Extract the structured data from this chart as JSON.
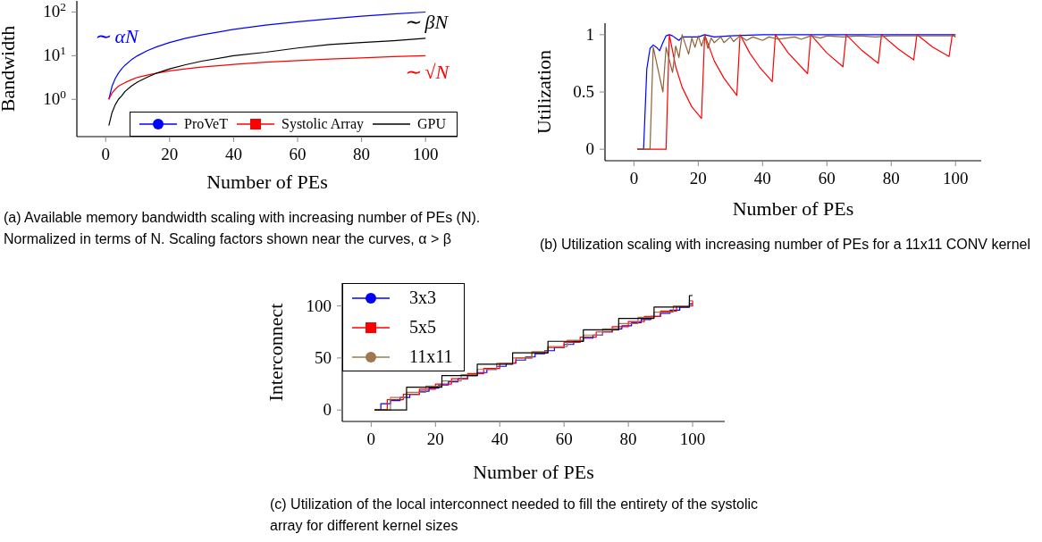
{
  "chart_data": [
    {
      "type": "line",
      "xlabel": "Number of PEs",
      "ylabel": "Bandwidth",
      "log": "y",
      "legend": "bottom right",
      "x": [
        1,
        2,
        3,
        4,
        5,
        6,
        8,
        10,
        13,
        16,
        20,
        25,
        30,
        40,
        50,
        60,
        70,
        80,
        90,
        100
      ],
      "series": [
        {
          "name": "ProVeT",
          "color": "#0000ff",
          "values": [
            1,
            2,
            3,
            4,
            5,
            6,
            8,
            10,
            13,
            16,
            20,
            25,
            30,
            40,
            50,
            60,
            70,
            80,
            90,
            100
          ]
        },
        {
          "name": "Systolic Array",
          "color": "#ff0000",
          "values": [
            1,
            1.4,
            1.7,
            2,
            2.2,
            2.4,
            2.8,
            3.2,
            3.6,
            4,
            4.5,
            5,
            5.5,
            6.3,
            7.1,
            7.7,
            8.4,
            8.9,
            9.5,
            10
          ]
        },
        {
          "name": "GPU",
          "color": "#000000",
          "values": [
            0.25,
            0.5,
            0.75,
            1,
            1.2,
            1.5,
            2,
            2.5,
            3.2,
            4,
            5,
            6.2,
            7.5,
            10,
            12,
            15,
            18,
            20,
            22,
            25
          ]
        }
      ],
      "xlim": [
        -9,
        110
      ],
      "xticks": [
        0,
        20,
        40,
        60,
        80,
        100
      ],
      "ylim": [
        0.14,
        180
      ],
      "yticks": [
        {
          "value": 1,
          "label": "10$^{0}$"
        },
        {
          "value": 10,
          "label": "10$^{1}$"
        },
        {
          "value": 100,
          "label": "10$^{2}$"
        }
      ],
      "annotations": [
        "∼ αN",
        "∼ √N",
        "∼ βN",
        "(a) Available memory bandwidth scaling with increasing number of PEs (N). Normalized in terms of N. Scaling factors shown near the curves, α > β"
      ]
    },
    {
      "type": "line",
      "xlabel": "Number of PEs",
      "ylabel": "Utilization",
      "series": [
        {
          "color": "#0000ff",
          "x": [
            1,
            3,
            4,
            5,
            6,
            7,
            8,
            9,
            10,
            11,
            12,
            13,
            14,
            15,
            20,
            22,
            25,
            30,
            40,
            100
          ],
          "values": [
            0,
            0,
            0.7,
            0.88,
            0.91,
            0.89,
            0.86,
            0.93,
            0.99,
            1,
            0.99,
            0.97,
            0.95,
            0.98,
            0.98,
            1,
            0.98,
            0.99,
            1,
            1
          ]
        },
        {
          "color": "#ff0000",
          "x": [
            1,
            10,
            11,
            13,
            15,
            18,
            21,
            22,
            25,
            28,
            32,
            33,
            36,
            39,
            43,
            44,
            48,
            54,
            55,
            60,
            65,
            66,
            71,
            76,
            77,
            82,
            87,
            88,
            93,
            98,
            99,
            100
          ],
          "values": [
            0,
            0,
            1,
            0.72,
            0.54,
            0.37,
            0.27,
            1,
            0.77,
            0.62,
            0.47,
            1,
            0.84,
            0.72,
            0.59,
            1,
            0.84,
            0.66,
            1,
            0.84,
            0.72,
            1,
            0.86,
            0.75,
            1,
            0.88,
            0.78,
            1,
            0.89,
            0.81,
            1,
            0.98
          ]
        },
        {
          "color": "#8c6239",
          "x": [
            1,
            5,
            6,
            9,
            10,
            12,
            13,
            14,
            15,
            17,
            18,
            19,
            20,
            21,
            22,
            23,
            24,
            25,
            27,
            28,
            30,
            31,
            33,
            35,
            37,
            40,
            42,
            45,
            50,
            52,
            55,
            58,
            60,
            65,
            70,
            75,
            80,
            90,
            100
          ],
          "values": [
            0,
            0,
            0.89,
            0.5,
            0.89,
            0.67,
            0.9,
            0.8,
            1,
            0.83,
            0.97,
            0.89,
            0.99,
            0.9,
            0.99,
            0.88,
            0.97,
            0.93,
            0.98,
            0.93,
            0.98,
            0.94,
            0.99,
            0.95,
            0.98,
            0.95,
            0.98,
            0.96,
            0.98,
            0.96,
            0.99,
            0.97,
            0.99,
            0.98,
            0.99,
            0.98,
            0.99,
            0.99,
            0.99
          ]
        }
      ],
      "xlim": [
        -9,
        108
      ],
      "xticks": [
        0,
        20,
        40,
        60,
        80,
        100
      ],
      "ylim": [
        -0.1,
        1.1
      ],
      "yticks": [
        0,
        0.5,
        1
      ],
      "annotations": [
        "(b) Utilization scaling with increasing number of PEs for a 11x11 CONV kernel"
      ]
    },
    {
      "type": "step",
      "xlabel": "Number of PEs",
      "ylabel": "Interconnect",
      "legend": "top left",
      "series": [
        {
          "name": "3x3",
          "color": "#0000ff",
          "x": [
            1,
            3,
            6,
            9,
            12,
            15,
            18,
            21,
            24,
            27,
            30,
            33,
            36,
            39,
            42,
            45,
            48,
            51,
            54,
            57,
            60,
            63,
            66,
            69,
            72,
            75,
            78,
            81,
            84,
            87,
            90,
            93,
            96,
            99,
            100
          ],
          "values": [
            0,
            6,
            9,
            12,
            15,
            18,
            21,
            24,
            27,
            30,
            33,
            36,
            39,
            42,
            45,
            48,
            51,
            54,
            57,
            60,
            63,
            66,
            69,
            72,
            75,
            78,
            81,
            84,
            87,
            90,
            93,
            96,
            99,
            102,
            102
          ]
        },
        {
          "name": "5x5",
          "color": "#ff0000",
          "x": [
            1,
            5,
            10,
            15,
            20,
            25,
            30,
            35,
            40,
            45,
            50,
            55,
            60,
            65,
            70,
            75,
            80,
            85,
            90,
            95,
            100
          ],
          "values": [
            0,
            10,
            15,
            20,
            25,
            30,
            35,
            40,
            45,
            50,
            55,
            60,
            65,
            70,
            75,
            80,
            85,
            90,
            95,
            100,
            105
          ]
        },
        {
          "name": "11x11",
          "color": "#a07850",
          "x": [
            1,
            6,
            11,
            17,
            22,
            28,
            33,
            39,
            44,
            50,
            55,
            61,
            66,
            72,
            77,
            83,
            88,
            94,
            99,
            100
          ],
          "values": [
            0,
            12,
            17,
            23,
            28,
            34,
            39,
            45,
            50,
            56,
            61,
            67,
            72,
            78,
            83,
            89,
            94,
            100,
            105,
            105
          ]
        },
        {
          "color": "#000000",
          "x": [
            1,
            11,
            22,
            33,
            44,
            55,
            66,
            77,
            88,
            99,
            100
          ],
          "values": [
            0,
            22,
            33,
            44,
            55,
            66,
            77,
            88,
            99,
            110,
            110
          ]
        }
      ],
      "xlim": [
        -9,
        110
      ],
      "xticks": [
        0,
        20,
        40,
        60,
        80,
        100
      ],
      "ylim": [
        -11,
        122
      ],
      "yticks": [
        0,
        50,
        100
      ],
      "annotations": [
        "(c) Utilization of the local interconnect needed to fill the entirety of the systolic array for different kernel sizes"
      ]
    }
  ]
}
